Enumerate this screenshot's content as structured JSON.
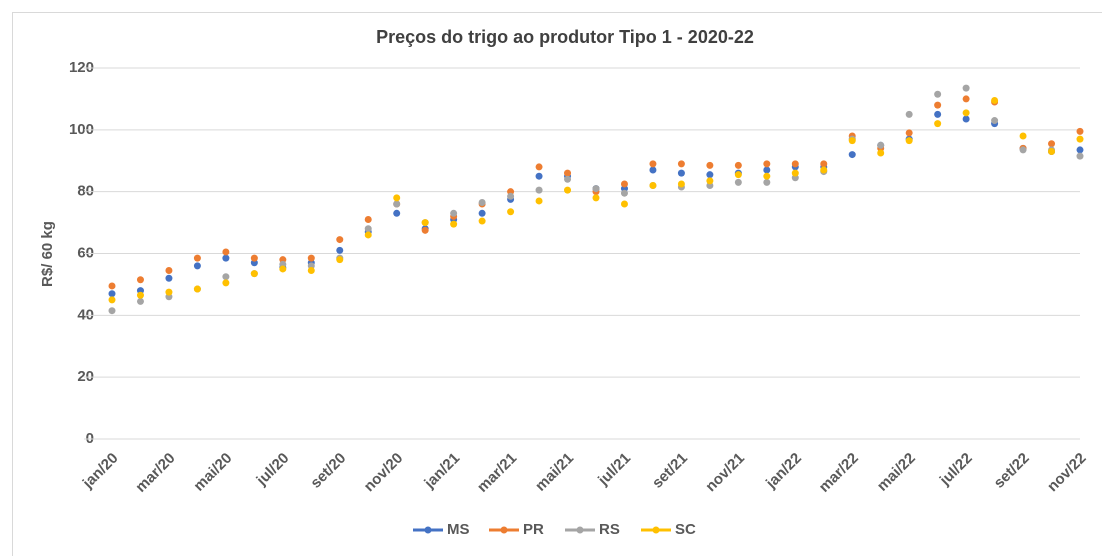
{
  "chart_data": {
    "type": "line",
    "title": "Preços do trigo ao produtor Tipo 1 - 2020-22",
    "y_label": "R$/ 60 kg",
    "categories": [
      "jan/20",
      null,
      "mar/20",
      null,
      "mai/20",
      null,
      "jul/20",
      null,
      "set/20",
      null,
      "nov/20",
      null,
      "jan/21",
      null,
      "mar/21",
      null,
      "mai/21",
      null,
      "jul/21",
      null,
      "set/21",
      null,
      "nov/21",
      null,
      "jan/22",
      null,
      "mar/22",
      null,
      "mai/22",
      null,
      "jul/22",
      null,
      "set/22",
      null,
      "nov/22"
    ],
    "series": [
      {
        "name": "MS",
        "color": "#4472c4",
        "values": [
          47,
          48,
          52,
          56,
          58.5,
          57,
          55.5,
          57,
          61,
          67,
          73,
          68,
          71,
          73,
          77.5,
          85,
          85,
          81,
          81,
          87,
          86,
          85.5,
          86,
          87,
          88,
          88,
          92,
          95,
          97,
          105,
          103.5,
          102,
          94,
          93,
          93.5
        ]
      },
      {
        "name": "PR",
        "color": "#ed7d31",
        "values": [
          49.5,
          51.5,
          54.5,
          58.5,
          60.5,
          58.5,
          58,
          58.5,
          64.5,
          71,
          76,
          67.5,
          72,
          76,
          80,
          88,
          86,
          80,
          82.5,
          89,
          89,
          88.5,
          88.5,
          89,
          89,
          89,
          98,
          94,
          99,
          108,
          110,
          109,
          94,
          95.5,
          99.5
        ]
      },
      {
        "name": "RS",
        "color": "#a5a5a5",
        "values": [
          41.5,
          44.5,
          46,
          48.5,
          52.5,
          53.5,
          56.5,
          56,
          58.5,
          68,
          76,
          70,
          73,
          76.5,
          78.5,
          80.5,
          84,
          81,
          79.5,
          82,
          81.5,
          82,
          83,
          83,
          84.5,
          86.5,
          97,
          95,
          105,
          111.5,
          113.5,
          103,
          93.5,
          93.5,
          91.5
        ]
      },
      {
        "name": "SC",
        "color": "#ffc000",
        "values": [
          45,
          46.5,
          47.5,
          48.5,
          50.5,
          53.5,
          55,
          54.5,
          58,
          66,
          78,
          70,
          69.5,
          70.5,
          73.5,
          77,
          80.5,
          78,
          76,
          82,
          82.5,
          83.5,
          85.5,
          85,
          86,
          87,
          96.5,
          92.5,
          96.5,
          102,
          105.5,
          109.5,
          98,
          93,
          97
        ]
      }
    ],
    "ylim": [
      0,
      120
    ],
    "yticks": [
      0,
      20,
      40,
      60,
      80,
      100,
      120
    ],
    "grid": true,
    "legend": "bottom"
  }
}
